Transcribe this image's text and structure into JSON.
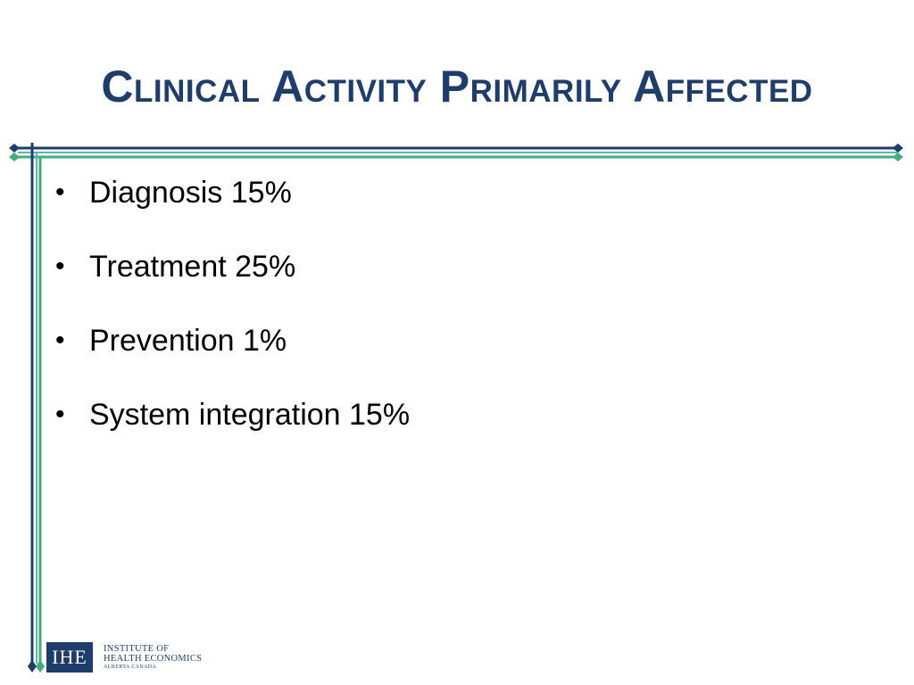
{
  "slide": {
    "title": "Clinical Activity Primarily Affected",
    "bullets": [
      {
        "text": "Diagnosis 15%"
      },
      {
        "text": "Treatment 25%"
      },
      {
        "text": "Prevention 1%"
      },
      {
        "text": "System integration 15%"
      }
    ],
    "bullet_glyph": "•"
  },
  "logo": {
    "abbr": "IHE",
    "line1": "INSTITUTE OF",
    "line2": "HEALTH ECONOMICS",
    "line3": "ALBERTA CANADA"
  },
  "colors": {
    "navy": "#1f3d6b",
    "green": "#3fae7a",
    "teal": "#5fb3c0"
  }
}
